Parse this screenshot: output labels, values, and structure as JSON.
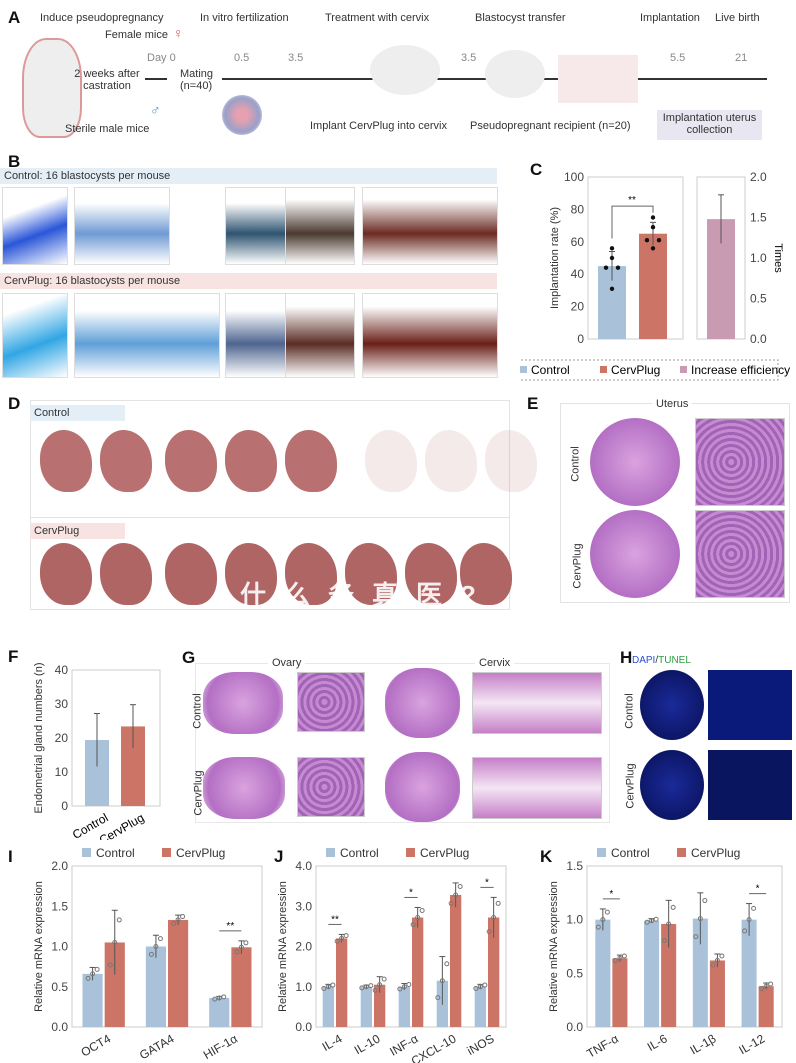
{
  "panel_a": {
    "label": "A",
    "steps": [
      "Induce pseudopregnancy",
      "In vitro fertilization",
      "Treatment with cervix",
      "Blastocyst transfer",
      "Implantation",
      "Live birth"
    ],
    "female": "Female mice",
    "male": "Sterile male mice",
    "castration": "2 weeks after castration",
    "mating": "Mating (n=40)",
    "days": [
      "Day 0",
      "0.5",
      "3.5",
      "3.5",
      "5.5",
      "21"
    ],
    "implant": "Implant CervPlug into cervix",
    "recipient": "Pseudopregnant recipient (n=20)",
    "collection": "Implantation uterus collection"
  },
  "panel_b": {
    "label": "B",
    "control": "Control: 16 blastocysts per mouse",
    "cervplug": "CervPlug: 16 blastocysts per mouse"
  },
  "panel_c": {
    "label": "C",
    "ylabel": "Implantation rate (%)",
    "y2label": "Times",
    "sig": "**",
    "legend": [
      "Control",
      "CervPlug",
      "Increase efficiency"
    ]
  },
  "panel_d": {
    "label": "D",
    "control": "Control",
    "cervplug": "CervPlug"
  },
  "panel_e": {
    "label": "E",
    "title": "Uterus",
    "rows": [
      "Control",
      "CervPlug"
    ]
  },
  "panel_g": {
    "label": "G",
    "ovary": "Ovary",
    "cervix": "Cervix",
    "rows": [
      "Control",
      "CervPlug"
    ]
  },
  "panel_h": {
    "label": "H",
    "dapi": "DAPI",
    "slash": "/",
    "tunel": "TUNEL",
    "rows": [
      "Control",
      "CervPlug"
    ]
  },
  "watermark": "什么务真医?",
  "colors": {
    "control": "#a9c2da",
    "cervplug": "#cc7566",
    "efficiency": "#c99bb3",
    "control_banner": "#e3eef6",
    "cervplug_banner": "#f7e3e1"
  },
  "chart_data": [
    {
      "id": "C",
      "type": "bar",
      "ylabel": "Implantation rate (%)",
      "ylim": [
        0,
        100
      ],
      "yticks": [
        0,
        20,
        40,
        60,
        80,
        100
      ],
      "categories": [
        "Control",
        "CervPlug"
      ],
      "values": [
        45,
        65
      ],
      "errors": [
        9,
        7
      ],
      "points": [
        [
          56,
          50,
          44,
          44,
          31
        ],
        [
          75,
          69,
          61,
          61,
          56
        ]
      ],
      "significance": "**",
      "secondary": {
        "name": "Increase efficiency",
        "ylabel": "Times",
        "ylim": [
          0,
          2.0
        ],
        "yticks": [
          "0.0",
          "0.5",
          "1.0",
          "1.5",
          "2.0"
        ],
        "value": 1.48,
        "error": 0.3
      }
    },
    {
      "id": "F",
      "type": "bar",
      "ylabel": "Endometrial gland numbers (n)",
      "ylim": [
        0,
        40
      ],
      "yticks": [
        "0",
        "10",
        "20",
        "30",
        "40"
      ],
      "categories": [
        "Control",
        "CervPlug"
      ],
      "values": [
        19.4,
        23.4
      ],
      "errors": [
        7.8,
        6.4
      ]
    },
    {
      "id": "I",
      "label": "I",
      "type": "bar",
      "ylabel": "Relative mRNA expression",
      "ylim": [
        0,
        2.0
      ],
      "yticks": [
        "0.0",
        "0.5",
        "1.0",
        "1.5",
        "2.0"
      ],
      "categories": [
        "OCT4",
        "GATA4",
        "HIF-1α"
      ],
      "series": [
        {
          "name": "Control",
          "values": [
            0.66,
            1.0,
            0.36
          ],
          "errors": [
            0.08,
            0.14,
            0.02
          ]
        },
        {
          "name": "CervPlug",
          "values": [
            1.05,
            1.33,
            0.99
          ],
          "errors": [
            0.4,
            0.06,
            0.08
          ]
        }
      ],
      "significance": [
        "",
        "",
        "**"
      ]
    },
    {
      "id": "J",
      "label": "J",
      "type": "bar",
      "ylabel": "Relative mRNA expression",
      "ylim": [
        0,
        4.0
      ],
      "yticks": [
        "0.0",
        "1.0",
        "2.0",
        "3.0",
        "4.0"
      ],
      "categories": [
        "IL-4",
        "IL-10",
        "INF-α",
        "CXCL-10",
        "iNOS"
      ],
      "series": [
        {
          "name": "Control",
          "values": [
            1.0,
            1.0,
            1.0,
            1.15,
            1.0
          ],
          "errors": [
            0.06,
            0.04,
            0.08,
            0.6,
            0.06
          ]
        },
        {
          "name": "CervPlug",
          "values": [
            2.2,
            1.05,
            2.72,
            3.28,
            2.72
          ],
          "errors": [
            0.1,
            0.2,
            0.25,
            0.3,
            0.5
          ]
        }
      ],
      "significance": [
        "**",
        "",
        "*",
        "",
        "*"
      ]
    },
    {
      "id": "K",
      "label": "K",
      "type": "bar",
      "ylabel": "Relative mRNA expression",
      "ylim": [
        0,
        1.5
      ],
      "yticks": [
        "0.0",
        "0.5",
        "1.0",
        "1.5"
      ],
      "categories": [
        "TNF-α",
        "IL-6",
        "IL-1β",
        "IL-12"
      ],
      "series": [
        {
          "name": "Control",
          "values": [
            1.0,
            0.99,
            1.01,
            1.0
          ],
          "errors": [
            0.1,
            0.02,
            0.24,
            0.15
          ]
        },
        {
          "name": "CervPlug",
          "values": [
            0.64,
            0.96,
            0.62,
            0.38
          ],
          "errors": [
            0.03,
            0.22,
            0.06,
            0.03
          ]
        }
      ],
      "significance": [
        "*",
        "",
        "",
        "*"
      ]
    }
  ]
}
